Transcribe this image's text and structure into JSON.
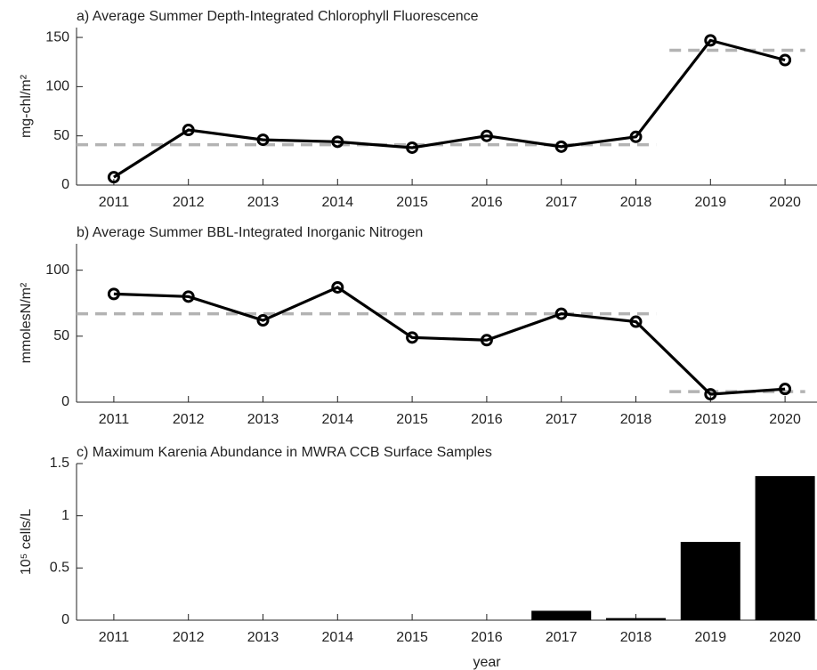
{
  "chart_data": [
    {
      "type": "line",
      "title": "a) Average Summer Depth-Integrated Chlorophyll Fluorescence",
      "ylabel": "mg-chl/m²",
      "x": [
        2011,
        2012,
        2013,
        2014,
        2015,
        2016,
        2017,
        2018,
        2019,
        2020
      ],
      "values": [
        8,
        56,
        46,
        44,
        38,
        50,
        39,
        49,
        147,
        127
      ],
      "color": "#000000",
      "means": [
        {
          "value": 41,
          "from": 2011,
          "to": 2018
        },
        {
          "value": 137,
          "from": 2019,
          "to": 2020
        }
      ],
      "mean_color": "#b3b3b3",
      "xlim": [
        2010.5,
        2020.5
      ],
      "xticks": [
        2011,
        2012,
        2013,
        2014,
        2015,
        2016,
        2017,
        2018,
        2019,
        2020
      ],
      "ylim": [
        0,
        160
      ],
      "yticks": [
        0,
        50,
        100,
        150
      ]
    },
    {
      "type": "line",
      "title": "b) Average Summer BBL-Integrated Inorganic Nitrogen",
      "ylabel": "mmolesN/m²",
      "x": [
        2011,
        2012,
        2013,
        2014,
        2015,
        2016,
        2017,
        2018,
        2019,
        2020
      ],
      "values": [
        82,
        80,
        62,
        87,
        49,
        47,
        67,
        61,
        6,
        10
      ],
      "color": "#000000",
      "means": [
        {
          "value": 67,
          "from": 2011,
          "to": 2018
        },
        {
          "value": 8,
          "from": 2019,
          "to": 2020
        }
      ],
      "mean_color": "#b3b3b3",
      "xlim": [
        2010.5,
        2020.5
      ],
      "xticks": [
        2011,
        2012,
        2013,
        2014,
        2015,
        2016,
        2017,
        2018,
        2019,
        2020
      ],
      "ylim": [
        0,
        120
      ],
      "yticks": [
        0,
        50,
        100
      ]
    },
    {
      "type": "bar",
      "title": "c) Maximum Karenia Abundance in MWRA CCB Surface Samples",
      "ylabel": "10⁵ cells/L",
      "xlabel": "year",
      "x": [
        2011,
        2012,
        2013,
        2014,
        2015,
        2016,
        2017,
        2018,
        2019,
        2020
      ],
      "values": [
        0,
        0,
        0,
        0,
        0,
        0,
        0.09,
        0.02,
        0.75,
        1.38
      ],
      "color": "#000000",
      "xlim": [
        2010.5,
        2020.5
      ],
      "xticks": [
        2011,
        2012,
        2013,
        2014,
        2015,
        2016,
        2017,
        2018,
        2019,
        2020
      ],
      "ylim": [
        0,
        1.5
      ],
      "yticks": [
        0,
        0.5,
        1,
        1.5
      ]
    }
  ]
}
